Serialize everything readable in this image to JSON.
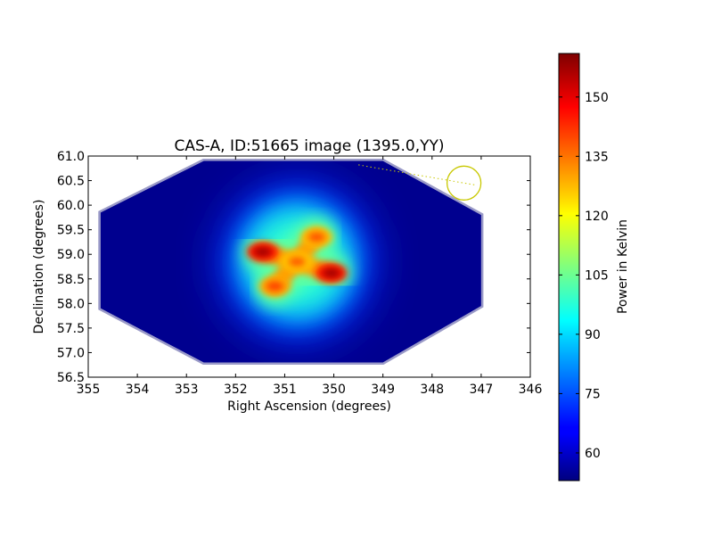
{
  "chart_data": {
    "type": "heatmap",
    "title": "CAS-A, ID:51665 image (1395.0,YY)",
    "xlabel": "Right Ascension (degrees)",
    "ylabel": "Declination (degrees)",
    "xlim": [
      355,
      346
    ],
    "ylim": [
      56.5,
      61.0
    ],
    "xticks": [
      355,
      354,
      353,
      352,
      351,
      350,
      349,
      348,
      347,
      346
    ],
    "xtick_labels": [
      "355",
      "354",
      "353",
      "352",
      "351",
      "350",
      "349",
      "348",
      "347",
      "346"
    ],
    "yticks": [
      56.5,
      57.0,
      57.5,
      58.0,
      58.5,
      59.0,
      59.5,
      60.0,
      60.5,
      61.0
    ],
    "ytick_labels": [
      "56.5",
      "57.0",
      "57.5",
      "58.0",
      "58.5",
      "59.0",
      "59.5",
      "60.0",
      "60.5",
      "61.0"
    ],
    "colormap": "jet",
    "background_color": "#00008f",
    "colorbar": {
      "label": "Power in Kelvin",
      "range": [
        53,
        161
      ],
      "ticks": [
        60,
        75,
        90,
        105,
        120,
        135,
        150
      ],
      "tick_labels": [
        "60",
        "75",
        "90",
        "105",
        "120",
        "135",
        "150"
      ]
    },
    "footprint_ra_dec": [
      [
        352.65,
        60.9
      ],
      [
        349.0,
        60.9
      ],
      [
        347.0,
        59.8
      ],
      [
        347.0,
        57.95
      ],
      [
        349.0,
        56.8
      ],
      [
        352.65,
        56.8
      ],
      [
        354.75,
        57.9
      ],
      [
        354.75,
        59.85
      ]
    ],
    "sources": [
      {
        "ra": 351.45,
        "dec": 59.05,
        "peak_kelvin": 158
      },
      {
        "ra": 350.05,
        "dec": 58.62,
        "peak_kelvin": 158
      },
      {
        "ra": 351.2,
        "dec": 58.35,
        "peak_kelvin": 142
      },
      {
        "ra": 350.35,
        "dec": 59.35,
        "peak_kelvin": 140
      },
      {
        "ra": 350.75,
        "dec": 58.85,
        "peak_kelvin": 139
      }
    ],
    "annotation": {
      "type": "circle",
      "color": "#c8c800",
      "center": {
        "ra": 347.35,
        "dec": 60.45
      },
      "leader_start": {
        "ra": 349.5,
        "dec": 60.82
      }
    }
  }
}
